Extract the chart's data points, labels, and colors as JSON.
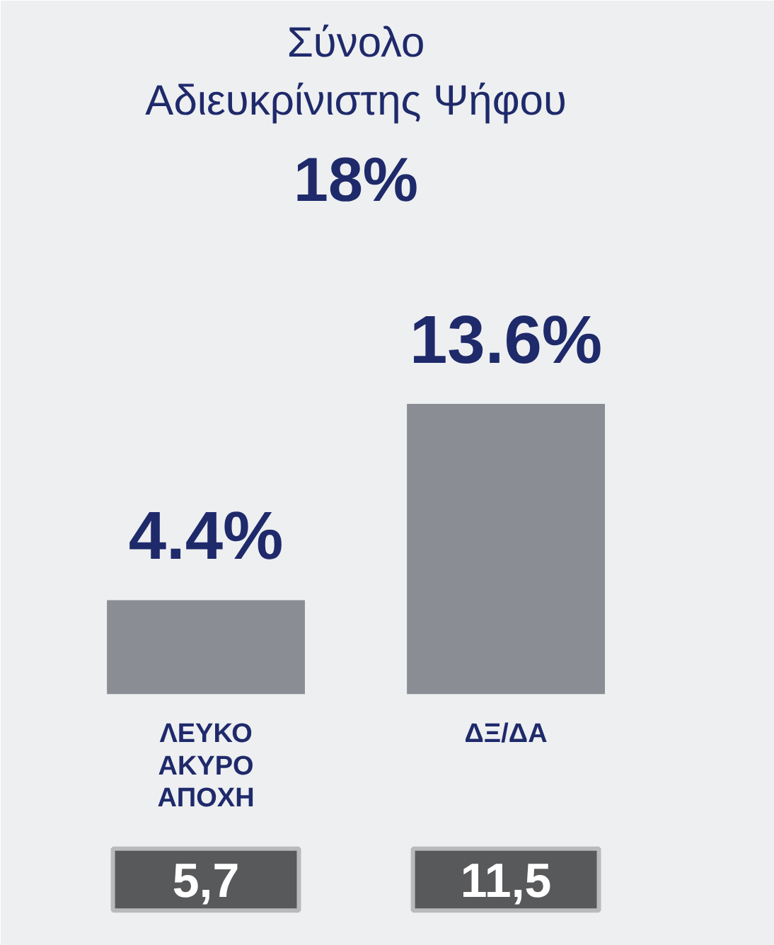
{
  "chart_data": {
    "type": "bar",
    "title": "Σύνολο Αδιευκρίνιστης Ψήφου",
    "subtitle": "18%",
    "categories": [
      "ΛΕΥΚΟ ΑΚΥΡΟ ΑΠΟΧΗ",
      "ΔΞ/ΔΑ"
    ],
    "values": [
      4.4,
      13.6
    ],
    "color": "#8a8d93",
    "value_labels": [
      "4.4%",
      "13.6%"
    ],
    "annotations": [
      "5,7",
      "11,5"
    ]
  }
}
